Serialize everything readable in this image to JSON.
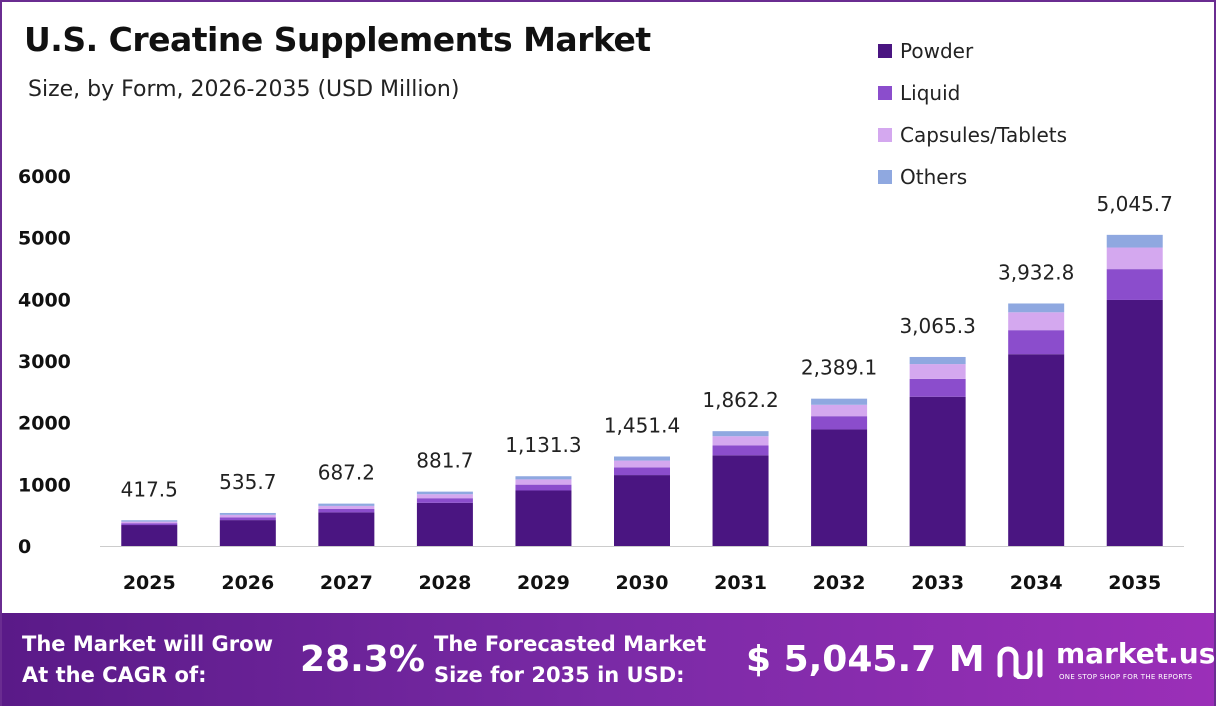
{
  "header": {
    "title": "U.S. Creatine Supplements Market",
    "subtitle": "Size, by Form, 2026-2035 (USD Million)"
  },
  "legend": {
    "items": [
      {
        "label": "Powder",
        "color": "#4a1581"
      },
      {
        "label": "Liquid",
        "color": "#8b4dcc"
      },
      {
        "label": "Capsules/Tablets",
        "color": "#d4a8ef"
      },
      {
        "label": "Others",
        "color": "#8fa8e0"
      }
    ]
  },
  "chart_data": {
    "type": "bar",
    "stacked": true,
    "categories": [
      "2025",
      "2026",
      "2027",
      "2028",
      "2029",
      "2030",
      "2031",
      "2032",
      "2033",
      "2034",
      "2035"
    ],
    "series": [
      {
        "name": "Powder",
        "color": "#4a1581",
        "values": [
          340,
          420,
          545,
          700,
          900,
          1150,
          1470,
          1890,
          2420,
          3110,
          3990
        ]
      },
      {
        "name": "Liquid",
        "color": "#8b4dcc",
        "values": [
          30,
          45,
          55,
          75,
          95,
          125,
          160,
          215,
          290,
          390,
          500
        ]
      },
      {
        "name": "Capsules/Tablets",
        "color": "#d4a8ef",
        "values": [
          25,
          40,
          50,
          65,
          85,
          110,
          150,
          185,
          240,
          290,
          350
        ]
      },
      {
        "name": "Others",
        "color": "#8fa8e0",
        "values": [
          22.5,
          30.7,
          37.2,
          41.7,
          51.3,
          66.4,
          82.2,
          99.1,
          115.3,
          142.8,
          205.7
        ]
      }
    ],
    "totals": [
      "417.5",
      "535.7",
      "687.2",
      "881.7",
      "1,131.3",
      "1,451.4",
      "1,862.2",
      "2,389.1",
      "3,065.3",
      "3,932.8",
      "5,045.7"
    ],
    "yticks": [
      "0",
      "1000",
      "2000",
      "3000",
      "4000",
      "5000",
      "6000"
    ],
    "ylim": [
      0,
      6000
    ],
    "legend_position": "top-right",
    "grid": false
  },
  "footer": {
    "cagr_line1": "The Market will Grow",
    "cagr_line2": "At the CAGR of:",
    "cagr_value": "28.3%",
    "forecast_line1": "The Forecasted Market",
    "forecast_line2": "Size for 2035 in USD:",
    "forecast_value": "$ 5,045.7 M",
    "brand": "market.us",
    "tagline": "ONE STOP SHOP FOR THE REPORTS"
  }
}
